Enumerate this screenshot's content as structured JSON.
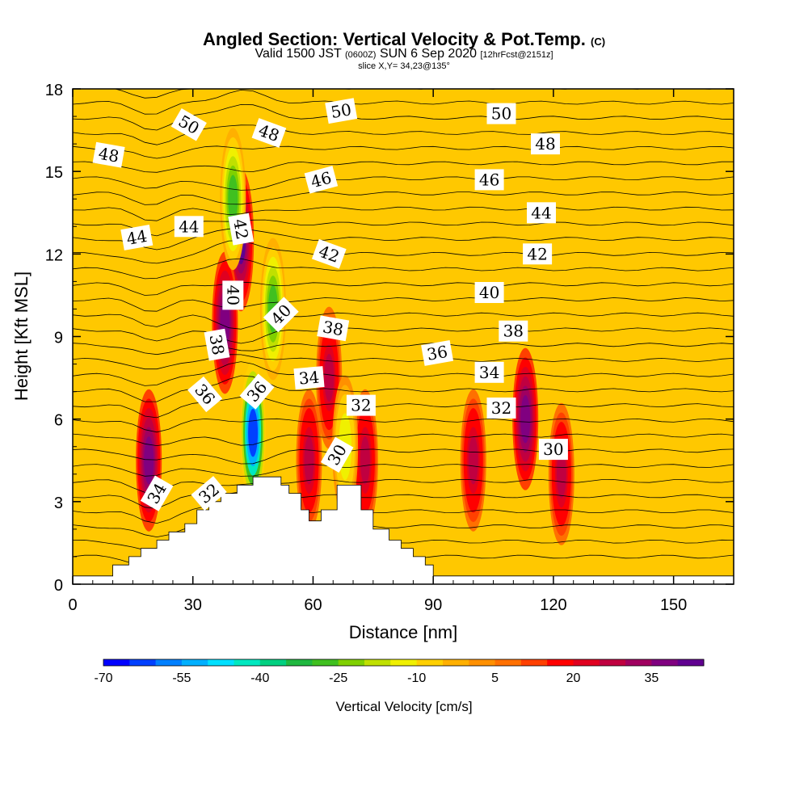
{
  "title": {
    "main": "Angled Section: Vertical Velocity & Pot.Temp.",
    "main_suffix": "(C)",
    "valid_prefix": "Valid 1500 JST",
    "valid_utc": "(0600Z)",
    "valid_date": "SUN 6 Sep 2020",
    "valid_fcst": "[12hrFcst@2151z]",
    "slice": "slice X,Y= 34,23@135°"
  },
  "chart_data": {
    "type": "heatmap",
    "xlabel": "Distance [nm]",
    "ylabel": "Height [Kft MSL]",
    "xlim": [
      0,
      165
    ],
    "ylim": [
      0,
      18
    ],
    "xticks": [
      0,
      30,
      60,
      90,
      120,
      150
    ],
    "yticks": [
      0,
      3,
      6,
      9,
      12,
      15,
      18
    ],
    "colorbar": {
      "title": "Vertical Velocity [cm/s]",
      "tick_labels": [
        -70,
        -55,
        -40,
        -25,
        -10,
        5,
        20,
        35
      ],
      "colors": [
        "#0000ff",
        "#0040ff",
        "#0080ff",
        "#00b0ff",
        "#00e0ff",
        "#00e8c0",
        "#00d080",
        "#20b840",
        "#40c020",
        "#80d000",
        "#c0e000",
        "#f0f000",
        "#ffd000",
        "#ffb000",
        "#ff9000",
        "#ff7000",
        "#ff4000",
        "#ff0000",
        "#e00020",
        "#c00040",
        "#a00060",
        "#800080",
        "#600090"
      ]
    },
    "background_value_label": "5",
    "updraft_cores": [
      {
        "x": 19,
        "z": 4.5,
        "w": 35
      },
      {
        "x": 42,
        "z": 12.5,
        "w": 40
      },
      {
        "x": 38,
        "z": 9.5,
        "w": 35
      },
      {
        "x": 59,
        "z": 4.5,
        "w": 25
      },
      {
        "x": 64,
        "z": 7.5,
        "w": 25
      },
      {
        "x": 73,
        "z": 4.5,
        "w": 25
      },
      {
        "x": 100,
        "z": 4.5,
        "w": 25
      },
      {
        "x": 113,
        "z": 6,
        "w": 35
      },
      {
        "x": 122,
        "z": 4,
        "w": 25
      }
    ],
    "downdraft_cores": [
      {
        "x": 45,
        "z": 5.5,
        "w": -65
      },
      {
        "x": 40,
        "z": 14,
        "w": -30
      },
      {
        "x": 50,
        "z": 10,
        "w": -30
      },
      {
        "x": 68,
        "z": 5,
        "w": -15
      }
    ],
    "theta_contour_labels": [
      {
        "value": "34",
        "x": 21,
        "z": 3.3,
        "angle": -60
      },
      {
        "value": "32",
        "x": 34,
        "z": 3.3,
        "angle": -40
      },
      {
        "value": "36",
        "x": 33,
        "z": 6.9,
        "angle": 50
      },
      {
        "value": "36",
        "x": 46,
        "z": 7.0,
        "angle": -50
      },
      {
        "value": "38",
        "x": 36,
        "z": 8.7,
        "angle": 80
      },
      {
        "value": "40",
        "x": 40,
        "z": 10.5,
        "angle": 90
      },
      {
        "value": "40",
        "x": 52,
        "z": 9.8,
        "angle": -45
      },
      {
        "value": "42",
        "x": 42,
        "z": 12.9,
        "angle": 80
      },
      {
        "value": "44",
        "x": 16,
        "z": 12.6,
        "angle": -10
      },
      {
        "value": "44",
        "x": 29,
        "z": 13.0,
        "angle": 0
      },
      {
        "value": "48",
        "x": 9,
        "z": 15.6,
        "angle": 10
      },
      {
        "value": "50",
        "x": 29,
        "z": 16.7,
        "angle": 30
      },
      {
        "value": "48",
        "x": 49,
        "z": 16.4,
        "angle": 20
      },
      {
        "value": "50",
        "x": 67,
        "z": 17.2,
        "angle": -10
      },
      {
        "value": "46",
        "x": 62,
        "z": 14.7,
        "angle": -15
      },
      {
        "value": "42",
        "x": 64,
        "z": 12.0,
        "angle": 20
      },
      {
        "value": "38",
        "x": 65,
        "z": 9.3,
        "angle": 10
      },
      {
        "value": "34",
        "x": 59,
        "z": 7.5,
        "angle": -5
      },
      {
        "value": "32",
        "x": 72,
        "z": 6.5,
        "angle": 0
      },
      {
        "value": "30",
        "x": 66,
        "z": 4.7,
        "angle": -60
      },
      {
        "value": "50",
        "x": 107,
        "z": 17.1,
        "angle": 0
      },
      {
        "value": "48",
        "x": 118,
        "z": 16.0,
        "angle": 0
      },
      {
        "value": "46",
        "x": 104,
        "z": 14.7,
        "angle": 0
      },
      {
        "value": "44",
        "x": 117,
        "z": 13.5,
        "angle": 0
      },
      {
        "value": "42",
        "x": 116,
        "z": 12.0,
        "angle": 0
      },
      {
        "value": "40",
        "x": 104,
        "z": 10.6,
        "angle": 0
      },
      {
        "value": "38",
        "x": 110,
        "z": 9.2,
        "angle": 0
      },
      {
        "value": "36",
        "x": 91,
        "z": 8.4,
        "angle": -10
      },
      {
        "value": "34",
        "x": 104,
        "z": 7.7,
        "angle": 0
      },
      {
        "value": "32",
        "x": 107,
        "z": 6.4,
        "angle": 0
      },
      {
        "value": "30",
        "x": 120,
        "z": 4.9,
        "angle": 0
      }
    ],
    "terrain_profile": [
      [
        0,
        0.3
      ],
      [
        10,
        0.3
      ],
      [
        10,
        0.7
      ],
      [
        14,
        0.7
      ],
      [
        14,
        1.0
      ],
      [
        17,
        1.0
      ],
      [
        17,
        1.3
      ],
      [
        21,
        1.3
      ],
      [
        21,
        1.6
      ],
      [
        24,
        1.6
      ],
      [
        24,
        1.9
      ],
      [
        28,
        1.9
      ],
      [
        28,
        2.2
      ],
      [
        31,
        2.2
      ],
      [
        31,
        2.7
      ],
      [
        34,
        2.7
      ],
      [
        34,
        3.0
      ],
      [
        37,
        3.0
      ],
      [
        37,
        3.3
      ],
      [
        41,
        3.3
      ],
      [
        41,
        3.6
      ],
      [
        45,
        3.6
      ],
      [
        45,
        3.9
      ],
      [
        52,
        3.9
      ],
      [
        52,
        3.6
      ],
      [
        54,
        3.6
      ],
      [
        54,
        3.3
      ],
      [
        57,
        3.3
      ],
      [
        57,
        2.7
      ],
      [
        59,
        2.7
      ],
      [
        59,
        2.3
      ],
      [
        62,
        2.3
      ],
      [
        62,
        2.7
      ],
      [
        66,
        2.7
      ],
      [
        66,
        3.6
      ],
      [
        72,
        3.6
      ],
      [
        72,
        2.7
      ],
      [
        75,
        2.7
      ],
      [
        75,
        2.0
      ],
      [
        79,
        2.0
      ],
      [
        79,
        1.6
      ],
      [
        82,
        1.6
      ],
      [
        82,
        1.3
      ],
      [
        85,
        1.3
      ],
      [
        85,
        1.0
      ],
      [
        88,
        1.0
      ],
      [
        88,
        0.7
      ],
      [
        90,
        0.7
      ],
      [
        90,
        0.3
      ],
      [
        165,
        0.3
      ]
    ]
  }
}
